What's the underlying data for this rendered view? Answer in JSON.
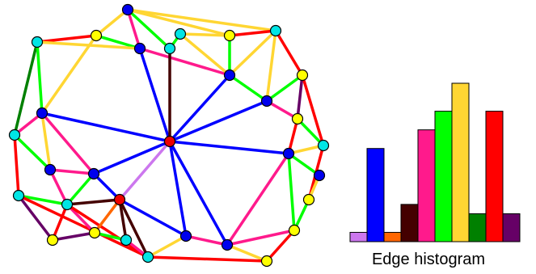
{
  "chart_data": {
    "type": "bar",
    "caption": "Edge histogram",
    "categories": [
      null,
      null,
      null,
      null,
      null,
      null,
      null,
      null,
      null,
      null
    ],
    "values": [
      1,
      10,
      1,
      4,
      12,
      14,
      17,
      3,
      14,
      3
    ],
    "colors": [
      "#cc77ee",
      "#0000ff",
      "#ff6600",
      "#440000",
      "#ff1a8c",
      "#00ff00",
      "#ffd633",
      "#008000",
      "#ff0000",
      "#660066"
    ],
    "ylim": [
      0,
      17
    ]
  }
}
